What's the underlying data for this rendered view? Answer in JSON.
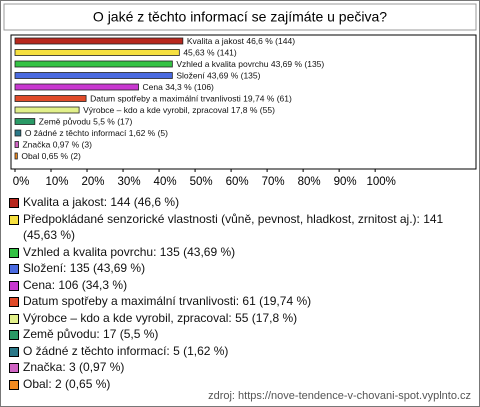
{
  "chart_data": {
    "type": "bar",
    "orientation": "horizontal",
    "title": "O jaké z těchto informací se zajímáte u pečiva?",
    "values": [
      46.6,
      45.63,
      43.69,
      43.69,
      34.3,
      19.74,
      17.8,
      5.5,
      1.62,
      0.97,
      0.65
    ],
    "value_labels": [
      "Kvalita a jakost 46,6 % (144)",
      "45,63 % (141)",
      "Vzhled a kvalita povrchu 43,69 % (135)",
      "Složení 43,69 % (135)",
      "Cena 34,3 % (106)",
      "Datum spotřeby a maximální trvanlivosti 19,74 % (61)",
      "Výrobce – kdo a kde vyrobil, zpracoval 17,8 % (55)",
      "Země původu 5,5 % (17)",
      "O žádné z těchto informací 1,62 % (5)",
      "Značka 0,97 % (3)",
      "Obal 0,65 % (2)"
    ],
    "legend_labels": [
      "Kvalita a jakost: 144 (46,6 %)",
      "Předpokládané senzorické vlastnosti (vůně, pevnost, hladkost, zrnitost aj.): 141 (45,63 %)",
      "Vzhled a kvalita povrchu: 135 (43,69 %)",
      "Složení: 135 (43,69 %)",
      "Cena: 106 (34,3 %)",
      "Datum spotřeby a maximální trvanlivosti: 61 (19,74 %)",
      "Výrobce – kdo a kde vyrobil, zpracoval: 55 (17,8 %)",
      "Země původu: 17 (5,5 %)",
      "O žádné z těchto informací: 5 (1,62 %)",
      "Značka: 3 (0,97 %)",
      "Obal: 2 (0,65 %)"
    ],
    "colors": [
      "#b8281e",
      "#f6e040",
      "#34c244",
      "#4a6ae0",
      "#c838d0",
      "#e04a28",
      "#e2f08a",
      "#2a9a66",
      "#2a7888",
      "#d064c4",
      "#f08a20"
    ],
    "xlim": [
      0,
      128
    ],
    "xticks": [
      {
        "value": 0,
        "label": "0%"
      },
      {
        "value": 10,
        "label": "10%"
      },
      {
        "value": 20,
        "label": "20%"
      },
      {
        "value": 30,
        "label": "30%"
      },
      {
        "value": 40,
        "label": "40%"
      },
      {
        "value": 50,
        "label": "50%"
      },
      {
        "value": 60,
        "label": "60%"
      },
      {
        "value": 70,
        "label": "70%"
      },
      {
        "value": 80,
        "label": "80%"
      },
      {
        "value": 90,
        "label": "90%"
      },
      {
        "value": 100,
        "label": "100%"
      }
    ],
    "source": "zdroj: https://nove-tendence-v-chovani-spot.vyplnto.cz"
  }
}
